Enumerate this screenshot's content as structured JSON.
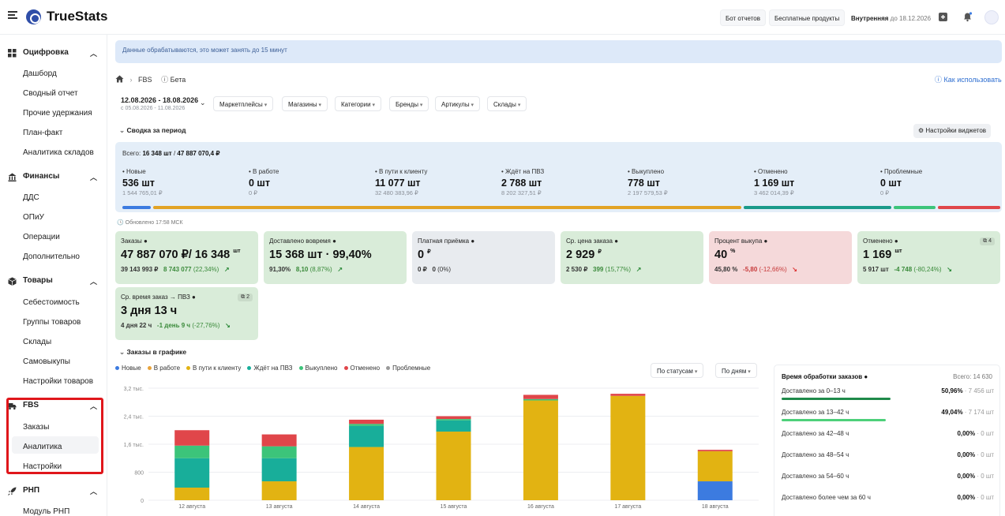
{
  "app": {
    "brand": "TrueStats"
  },
  "topbar": {
    "bot_label": "Бот отчетов",
    "free_label": "Бесплатные продукты",
    "plan_label": "Внутренняя",
    "plan_until": "до 18.12.2026"
  },
  "sidebar": {
    "groups": [
      {
        "label": "Оцифровка",
        "icon": "grid-icon",
        "items": [
          "Дашборд",
          "Сводный отчет",
          "Прочие удержания",
          "План-факт",
          "Аналитика складов"
        ]
      },
      {
        "label": "Финансы",
        "icon": "bank-icon",
        "items": [
          "ДДС",
          "ОПиУ",
          "Операции",
          "Дополнительно"
        ]
      },
      {
        "label": "Товары",
        "icon": "box-icon",
        "items": [
          "Себестоимость",
          "Группы товаров",
          "Склады",
          "Самовыкупы",
          "Настройки товаров"
        ]
      },
      {
        "label": "FBS",
        "icon": "truck-icon",
        "items": [
          "Заказы",
          "Аналитика",
          "Настройки"
        ]
      },
      {
        "label": "РНП",
        "icon": "rocket-icon",
        "items": [
          "Модуль РНП"
        ]
      }
    ]
  },
  "notice": "Данные обрабатываются, это может занять до 15 минут",
  "breadcrumb": {
    "section": "FBS",
    "beta": "Бета"
  },
  "help_link": "Как использовать",
  "daterange": {
    "current": "12.08.2026 - 18.08.2026",
    "compare": "с 05.08.2026 - 11.08.2026"
  },
  "filters": [
    "Маркетплейсы",
    "Магазины",
    "Категории",
    "Бренды",
    "Артикулы",
    "Склады"
  ],
  "summary_title": "Сводка за период",
  "widget_settings": "Настройки виджетов",
  "summary": {
    "total_label": "Всего:",
    "total_count": "16 348 шт",
    "total_sum": "47 887 070,4 ₽",
    "stats": [
      {
        "label": "Новые",
        "value": "536 шт",
        "sum": "1 544 765,01 ₽",
        "color": "#3c7be0",
        "share": 0.033
      },
      {
        "label": "В работе",
        "value": "0 шт",
        "sum": "0 ₽",
        "color": "#e8a33b",
        "share": 0
      },
      {
        "label": "В пути к клиенту",
        "value": "11 077 шт",
        "sum": "32 480 383,96 ₽",
        "color": "#e2a325",
        "share": 0.678
      },
      {
        "label": "Ждёт на ПВЗ",
        "value": "2 788 шт",
        "sum": "8 202 327,51 ₽",
        "color": "#1a9a8a",
        "share": 0.171
      },
      {
        "label": "Выкуплено",
        "value": "778 шт",
        "sum": "2 197 579,53 ₽",
        "color": "#3cc47a",
        "share": 0.048
      },
      {
        "label": "Отменено",
        "value": "1 169 шт",
        "sum": "3 462 014,39 ₽",
        "color": "#e0464a",
        "share": 0.072
      },
      {
        "label": "Проблемные",
        "value": "0 шт",
        "sum": "0 ₽",
        "color": "#999999",
        "share": 0
      }
    ]
  },
  "updated": "Обновлено 17:58 МСК",
  "cards": [
    {
      "title": "Заказы",
      "value": "47 887 070 ₽/ 16 348",
      "unit": "шт",
      "sub1": "39 143 993 ₽",
      "sub2": "8 743 077",
      "delta": "(22,34%)",
      "trend": "up"
    },
    {
      "title": "Доставлено вовремя",
      "value": "15 368 шт · 99,40%",
      "unit": "",
      "sub1": "91,30%",
      "sub2": "8,10",
      "delta": "(8,87%)",
      "trend": "up"
    },
    {
      "title": "Платная приёмка",
      "value": "0",
      "unit": "₽",
      "sub1": "0 ₽",
      "sub2": "0",
      "delta": "(0%)",
      "trend": "none"
    },
    {
      "title": "Ср. цена заказа",
      "value": "2 929",
      "unit": "₽",
      "sub1": "2 530 ₽",
      "sub2": "399",
      "delta": "(15,77%)",
      "trend": "up"
    },
    {
      "title": "Процент выкупа",
      "value": "40",
      "unit": "%",
      "sub1": "45,80 %",
      "sub2": "-5,80",
      "delta": "(-12,66%)",
      "trend": "down"
    },
    {
      "title": "Отменено",
      "value": "1 169",
      "unit": "шт",
      "sub1": "5 917 шт",
      "sub2": "-4 748",
      "delta": "(-80,24%)",
      "trend": "down-good",
      "badge": "4"
    },
    {
      "title": "Ср. время заказ → ПВЗ",
      "value": "3 дня 13 ч",
      "unit": "",
      "sub1": "4 дня 22 ч",
      "sub2": "-1 день 9 ч",
      "delta": "(-27,76%)",
      "trend": "down-good",
      "badge": "2"
    }
  ],
  "chart_title": "Заказы в графике",
  "chart_controls": {
    "by_status": "По статусам",
    "by_days": "По дням"
  },
  "chart_data": {
    "type": "bar",
    "stacked": true,
    "categories": [
      "12 августа",
      "13 августа",
      "14 августа",
      "15 августа",
      "16 августа",
      "17 августа",
      "18 августа"
    ],
    "ylim": [
      0,
      3200
    ],
    "yticks": [
      "0",
      "800",
      "1,6 тыс.",
      "2,4 тыс.",
      "3,2 тыс."
    ],
    "series": [
      {
        "name": "Новые",
        "color": "#3c7be0",
        "values": [
          0,
          0,
          0,
          0,
          0,
          0,
          540
        ]
      },
      {
        "name": "В работе",
        "color": "#e8a33b",
        "values": [
          0,
          0,
          0,
          0,
          0,
          0,
          0
        ]
      },
      {
        "name": "В пути к клиенту",
        "color": "#e2b312",
        "values": [
          360,
          540,
          1520,
          1960,
          2850,
          2980,
          860
        ]
      },
      {
        "name": "Ждёт на ПВЗ",
        "color": "#18ae9a",
        "values": [
          840,
          660,
          600,
          320,
          0,
          0,
          0
        ]
      },
      {
        "name": "Выкуплено",
        "color": "#3cc47a",
        "values": [
          360,
          340,
          60,
          40,
          40,
          0,
          0
        ]
      },
      {
        "name": "Отменено",
        "color": "#e0464a",
        "values": [
          440,
          340,
          120,
          80,
          120,
          60,
          40
        ]
      },
      {
        "name": "Проблемные",
        "color": "#999999",
        "values": [
          0,
          0,
          0,
          0,
          0,
          0,
          0
        ]
      }
    ],
    "legend": "top-left",
    "grid": true
  },
  "processing": {
    "title": "Время обработки заказов",
    "total": "Всего: 14 630",
    "rows": [
      {
        "label": "Доставлено за 0–13 ч",
        "pct": "50,96%",
        "count": "7 456 шт",
        "fraction": 0.5096,
        "color": "#1f8a4a"
      },
      {
        "label": "Доставлено за 13–42 ч",
        "pct": "49,04%",
        "count": "7 174 шт",
        "fraction": 0.4904,
        "color": "#4dd07a"
      },
      {
        "label": "Доставлено за 42–48 ч",
        "pct": "0,00%",
        "count": "0 шт",
        "fraction": 0,
        "color": "#cccccc"
      },
      {
        "label": "Доставлено за 48–54 ч",
        "pct": "0,00%",
        "count": "0 шт",
        "fraction": 0,
        "color": "#cccccc"
      },
      {
        "label": "Доставлено за 54–60 ч",
        "pct": "0,00%",
        "count": "0 шт",
        "fraction": 0,
        "color": "#cccccc"
      },
      {
        "label": "Доставлено более чем за 60 ч",
        "pct": "0,00%",
        "count": "0 шт",
        "fraction": 0,
        "color": "#cccccc"
      }
    ]
  }
}
